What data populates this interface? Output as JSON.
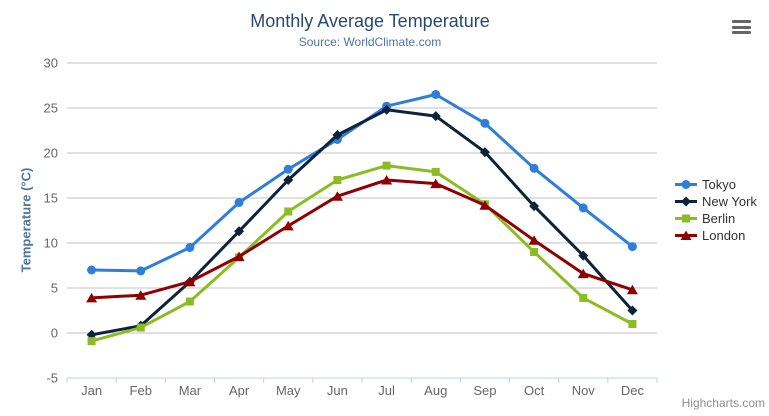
{
  "chart_data": {
    "type": "line",
    "title": "Monthly Average Temperature",
    "subtitle": "Source: WorldClimate.com",
    "categories": [
      "Jan",
      "Feb",
      "Mar",
      "Apr",
      "May",
      "Jun",
      "Jul",
      "Aug",
      "Sep",
      "Oct",
      "Nov",
      "Dec"
    ],
    "series": [
      {
        "name": "Tokyo",
        "color": "#2f7ed8",
        "marker": "circle",
        "values": [
          7.0,
          6.9,
          9.5,
          14.5,
          18.2,
          21.5,
          25.2,
          26.5,
          23.3,
          18.3,
          13.9,
          9.6
        ]
      },
      {
        "name": "New York",
        "color": "#0d233a",
        "marker": "diamond",
        "values": [
          -0.2,
          0.8,
          5.7,
          11.3,
          17.0,
          22.0,
          24.8,
          24.1,
          20.1,
          14.1,
          8.6,
          2.5
        ]
      },
      {
        "name": "Berlin",
        "color": "#8bbc21",
        "marker": "square",
        "values": [
          -0.9,
          0.6,
          3.5,
          8.4,
          13.5,
          17.0,
          18.6,
          17.9,
          14.3,
          9.0,
          3.9,
          1.0
        ]
      },
      {
        "name": "London",
        "color": "#910000",
        "marker": "triangle",
        "values": [
          3.9,
          4.2,
          5.7,
          8.5,
          11.9,
          15.2,
          17.0,
          16.6,
          14.2,
          10.3,
          6.6,
          4.8
        ]
      }
    ],
    "xlabel": "",
    "ylabel": "Temperature (°C)",
    "ylim": [
      -5,
      30
    ],
    "ytick_interval": 5,
    "grid": true,
    "legend_position": "right"
  },
  "credits": "Highcharts.com",
  "colors": {
    "title": "#274b6d",
    "subtitle": "#4d759e",
    "axis_labels": "#666666",
    "grid_line": "#c0c0c0",
    "axis_line": "#c0d0e0",
    "legend_text": "#333333",
    "credits_text": "#909090",
    "menu_icon": "#666666"
  }
}
